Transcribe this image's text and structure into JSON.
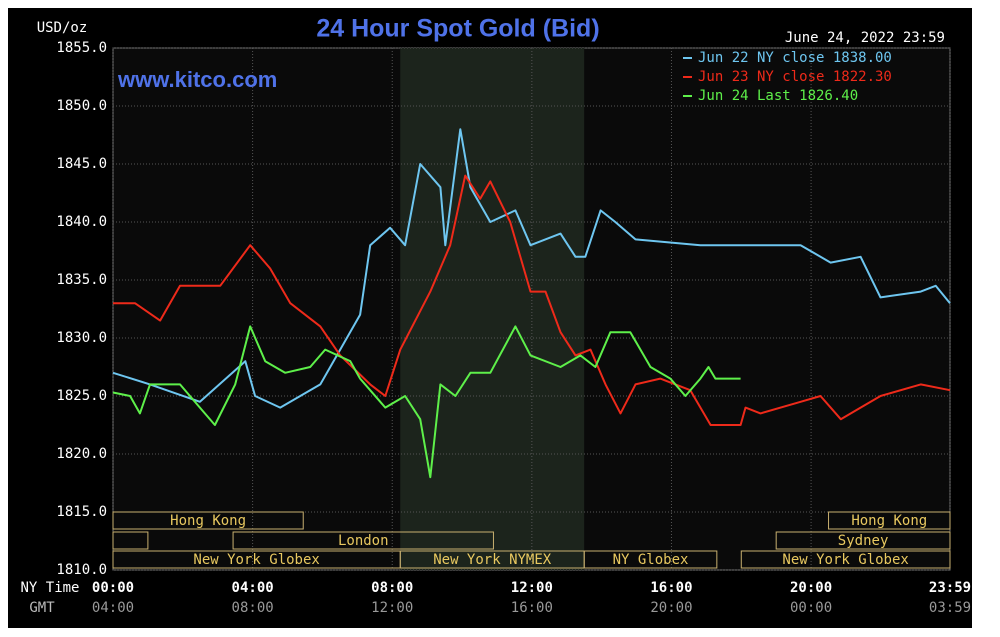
{
  "chart_data": {
    "type": "line",
    "title": "24 Hour Spot Gold (Bid)",
    "subtitle": "June 24, 2022 23:59",
    "watermark": "www.kitco.com",
    "ylabel": "USD/oz",
    "x_axis_labels": [
      "NY Time",
      "GMT"
    ],
    "xlim": [
      0,
      23.98
    ],
    "xticks": [
      {
        "value": 0,
        "label": "00:00"
      },
      {
        "value": 4,
        "label": "04:00"
      },
      {
        "value": 8,
        "label": "08:00"
      },
      {
        "value": 12,
        "label": "12:00"
      },
      {
        "value": 16,
        "label": "16:00"
      },
      {
        "value": 20,
        "label": "20:00"
      },
      {
        "value": 23.98,
        "label": "23:59"
      }
    ],
    "x2_tick_labels": [
      "04:00",
      "08:00",
      "12:00",
      "16:00",
      "20:00",
      "00:00",
      "03:59"
    ],
    "ylim": [
      1810,
      1855
    ],
    "yticks": [
      {
        "value": 1810,
        "label": "1810.0"
      },
      {
        "value": 1815,
        "label": "1815.0"
      },
      {
        "value": 1820,
        "label": "1820.0"
      },
      {
        "value": 1825,
        "label": "1825.0"
      },
      {
        "value": 1830,
        "label": "1830.0"
      },
      {
        "value": 1835,
        "label": "1835.0"
      },
      {
        "value": 1840,
        "label": "1840.0"
      },
      {
        "value": 1845,
        "label": "1845.0"
      },
      {
        "value": 1850,
        "label": "1850.0"
      },
      {
        "value": 1855,
        "label": "1855.0"
      }
    ],
    "grid": true,
    "legend": "top-right",
    "shaded_range": [
      8.23,
      13.5
    ],
    "sessions": [
      {
        "label": "Hong Kong",
        "start": 0,
        "end": 5.45,
        "row": 0
      },
      {
        "label": "Hong Kong",
        "start": 20.5,
        "end": 23.98,
        "row": 0
      },
      {
        "start": 0,
        "end": 1,
        "row": 1
      },
      {
        "label": "London",
        "start": 3.44,
        "end": 10.9,
        "row": 1
      },
      {
        "label": "Sydney",
        "start": 19,
        "end": 23.98,
        "row": 1
      },
      {
        "label": "New York Globex",
        "start": 0,
        "end": 8.23,
        "row": 2
      },
      {
        "label": "New York NYMEX",
        "start": 8.23,
        "end": 13.5,
        "row": 2
      },
      {
        "label": "NY Globex",
        "start": 13.5,
        "end": 17.3,
        "row": 2
      },
      {
        "label": "New York Globex",
        "start": 18,
        "end": 23.98,
        "row": 2
      }
    ],
    "series": [
      {
        "name": "Jun 22 NY close 1838.00",
        "color": "#6ec6f0",
        "x": [
          0,
          1.06,
          2.49,
          3.79,
          4.07,
          4.79,
          5.94,
          6.51,
          7.08,
          7.37,
          7.94,
          8.37,
          8.8,
          9.38,
          9.52,
          9.95,
          10.24,
          10.81,
          11.53,
          11.96,
          12.82,
          13.25,
          13.53,
          13.97,
          14.39,
          14.97,
          16.83,
          19.7,
          20.56,
          21.42,
          21.99,
          23.14,
          23.57,
          23.98
        ],
        "values": [
          1827,
          1826,
          1824.5,
          1828,
          1825,
          1824,
          1826,
          1829,
          1832,
          1838,
          1839.5,
          1838,
          1845,
          1843,
          1838,
          1848,
          1843,
          1840,
          1841,
          1838,
          1839,
          1837,
          1837,
          1841,
          1840,
          1838.5,
          1838,
          1838,
          1836.5,
          1837,
          1833.5,
          1834,
          1834.5,
          1833
        ]
      },
      {
        "name": "Jun 23 NY close 1822.30",
        "color": "#ee2a1a",
        "x": [
          0,
          0.63,
          1.35,
          1.92,
          3.07,
          3.93,
          4.5,
          5.08,
          5.94,
          6.51,
          7.37,
          7.8,
          8.23,
          9.09,
          9.66,
          10.09,
          10.52,
          10.81,
          11.38,
          11.96,
          12.39,
          12.82,
          13.25,
          13.68,
          14.11,
          14.54,
          14.97,
          15.68,
          16.54,
          17.12,
          17.98,
          18.12,
          18.55,
          19.7,
          20.27,
          20.85,
          21.42,
          21.99,
          23.14,
          23.98
        ],
        "values": [
          1833,
          1833,
          1831.5,
          1834.5,
          1834.5,
          1838,
          1836,
          1833,
          1831,
          1828.5,
          1826,
          1825,
          1829,
          1834,
          1838,
          1844,
          1842,
          1843.5,
          1840,
          1834,
          1834,
          1830.5,
          1828.5,
          1829,
          1826,
          1823.5,
          1826,
          1826.5,
          1825.5,
          1822.5,
          1822.5,
          1824,
          1823.5,
          1824.5,
          1825,
          1823,
          1824,
          1825,
          1826,
          1825.5
        ]
      },
      {
        "name": "Jun 24 Last 1826.40",
        "color": "#5ef04a",
        "x": [
          0,
          0.49,
          0.77,
          1.06,
          1.92,
          2.49,
          2.92,
          3.5,
          3.93,
          4.36,
          4.93,
          5.65,
          6.08,
          6.8,
          7.08,
          7.8,
          8.37,
          8.8,
          9.09,
          9.38,
          9.81,
          10.24,
          10.81,
          11.53,
          11.96,
          12.82,
          13.39,
          13.82,
          14.25,
          14.82,
          15.4,
          15.97,
          16.4,
          16.83,
          17.06,
          17.26,
          17.98
        ],
        "values": [
          1825.3,
          1825,
          1823.5,
          1826,
          1826,
          1824,
          1822.5,
          1826,
          1831,
          1828,
          1827,
          1827.5,
          1829,
          1828,
          1826.5,
          1824,
          1825,
          1823,
          1818,
          1826,
          1825,
          1827,
          1827,
          1831,
          1828.5,
          1827.5,
          1828.5,
          1827.5,
          1830.5,
          1830.5,
          1827.5,
          1826.5,
          1825,
          1826.5,
          1827.5,
          1826.5,
          1826.5
        ]
      }
    ]
  }
}
